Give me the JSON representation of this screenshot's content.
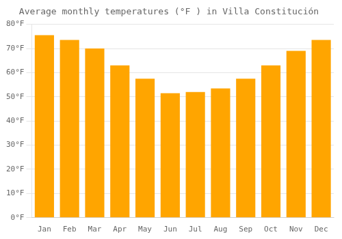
{
  "chart_data": {
    "type": "bar",
    "title": "Average monthly temperatures (°F ) in Villa Constitución",
    "categories": [
      "Jan",
      "Feb",
      "Mar",
      "Apr",
      "May",
      "Jun",
      "Jul",
      "Aug",
      "Sep",
      "Oct",
      "Nov",
      "Dec"
    ],
    "values": [
      75.5,
      73.5,
      70.0,
      63.0,
      57.5,
      51.5,
      52.0,
      53.5,
      57.5,
      63.0,
      69.0,
      73.5
    ],
    "color": "#FFA500",
    "ylim": [
      0,
      80
    ],
    "yticks": [
      {
        "value": 0,
        "label": "0°F"
      },
      {
        "value": 10,
        "label": "10°F"
      },
      {
        "value": 20,
        "label": "20°F"
      },
      {
        "value": 30,
        "label": "30°F"
      },
      {
        "value": 40,
        "label": "40°F"
      },
      {
        "value": 50,
        "label": "50°F"
      },
      {
        "value": 60,
        "label": "60°F"
      },
      {
        "value": 70,
        "label": "70°F"
      },
      {
        "value": 80,
        "label": "80°F"
      }
    ],
    "grid": true
  }
}
